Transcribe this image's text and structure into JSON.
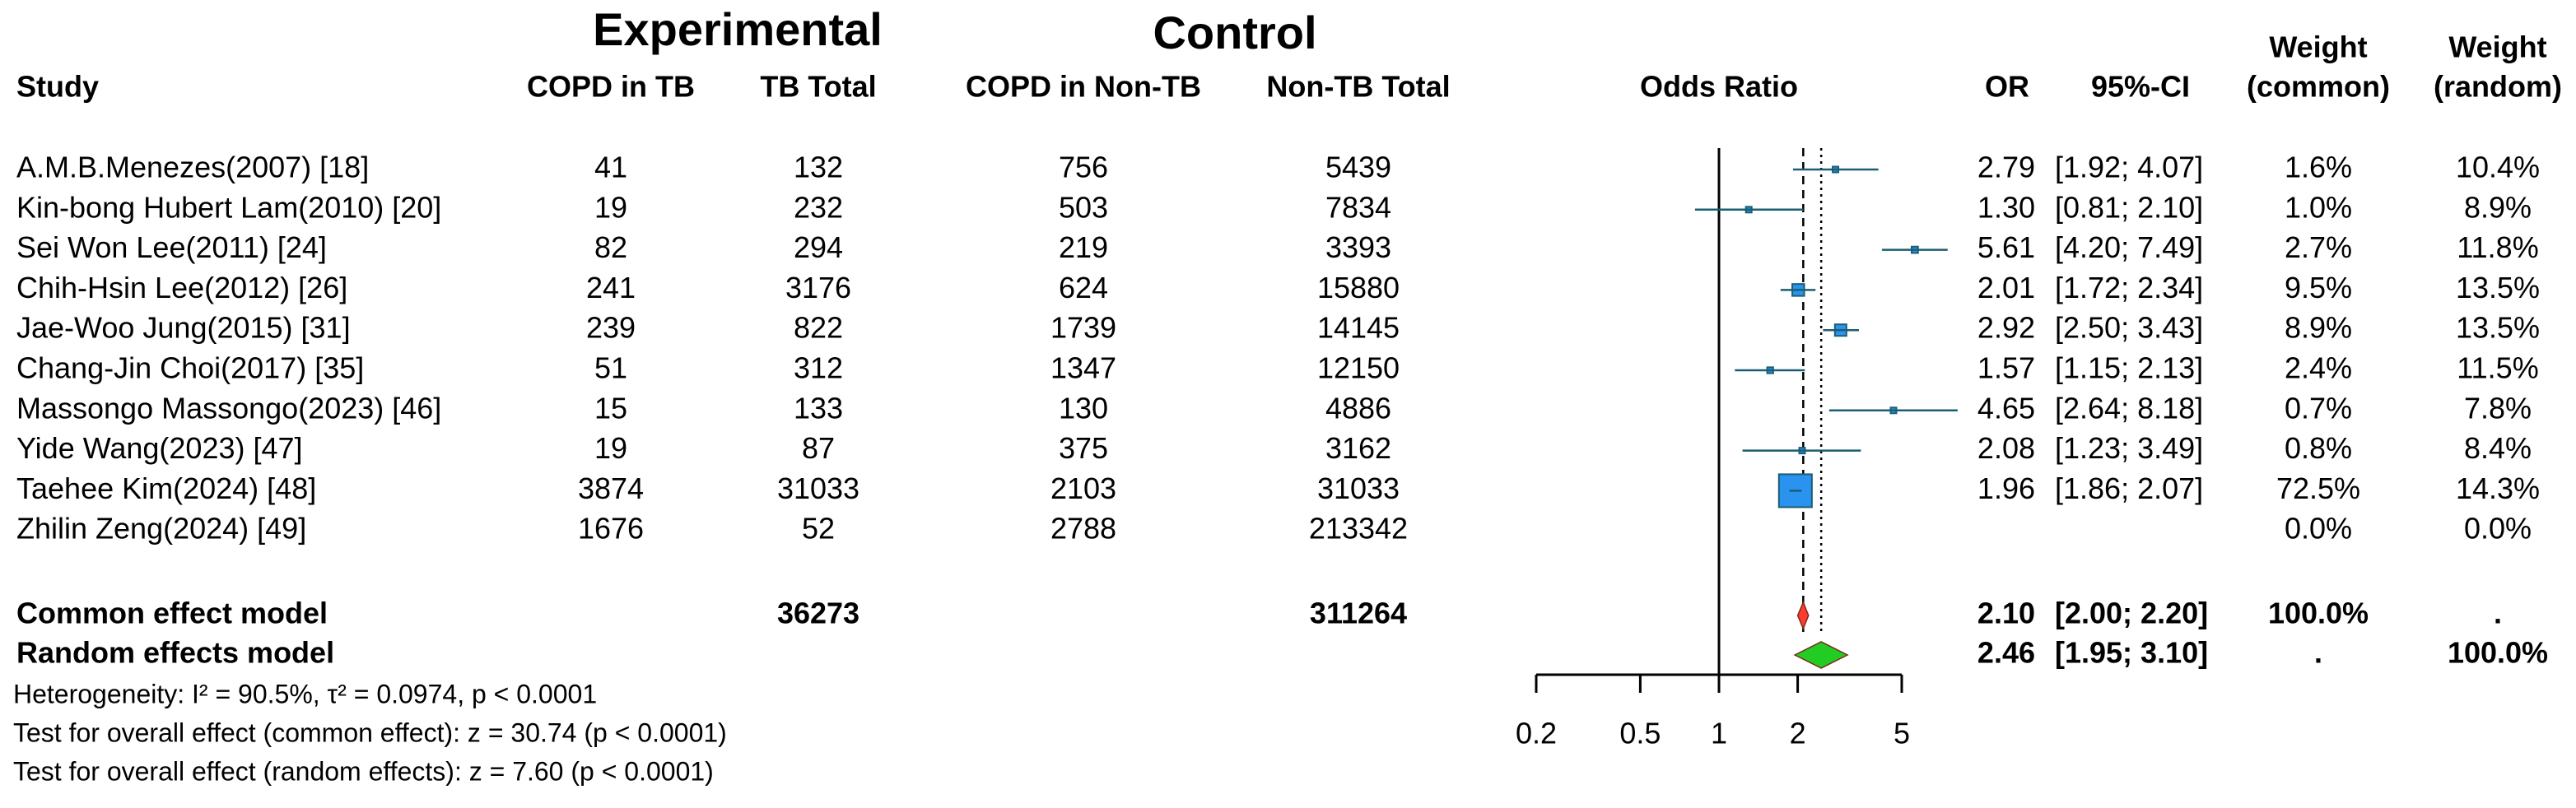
{
  "chart_data": {
    "type": "forest",
    "group_headers": {
      "experimental": "Experimental",
      "control": "Control"
    },
    "columns": {
      "study": "Study",
      "copd_tb": "COPD in TB",
      "tb_total": "TB Total",
      "copd_nontb": "COPD in Non-TB",
      "nontb_total": "Non-TB Total",
      "plot": "Odds Ratio",
      "or": "OR",
      "ci": "95%-CI",
      "weight_common": [
        "Weight",
        "(common)"
      ],
      "weight_random": [
        "Weight",
        "(random)"
      ]
    },
    "studies": [
      {
        "name": "A.M.B.Menezes(2007) [18]",
        "copd_tb": 41,
        "tb_total": 132,
        "copd_nontb": 756,
        "nontb_total": 5439,
        "or": 2.79,
        "or_label": "2.79",
        "ci": [
          1.92,
          4.07
        ],
        "ci_label": "[1.92; 4.07]",
        "weight_common": 1.6,
        "weight_common_label": "1.6%",
        "weight_random": 10.4,
        "weight_random_label": "10.4%"
      },
      {
        "name": "Kin-bong Hubert Lam(2010) [20]",
        "copd_tb": 19,
        "tb_total": 232,
        "copd_nontb": 503,
        "nontb_total": 7834,
        "or": 1.3,
        "or_label": "1.30",
        "ci": [
          0.81,
          2.1
        ],
        "ci_label": "[0.81; 2.10]",
        "weight_common": 1.0,
        "weight_common_label": "1.0%",
        "weight_random": 8.9,
        "weight_random_label": "8.9%"
      },
      {
        "name": "Sei Won Lee(2011) [24]",
        "copd_tb": 82,
        "tb_total": 294,
        "copd_nontb": 219,
        "nontb_total": 3393,
        "or": 5.61,
        "or_label": "5.61",
        "ci": [
          4.2,
          7.49
        ],
        "ci_label": "[4.20; 7.49]",
        "weight_common": 2.7,
        "weight_common_label": "2.7%",
        "weight_random": 11.8,
        "weight_random_label": "11.8%"
      },
      {
        "name": "Chih-Hsin Lee(2012) [26]",
        "copd_tb": 241,
        "tb_total": 3176,
        "copd_nontb": 624,
        "nontb_total": 15880,
        "or": 2.01,
        "or_label": "2.01",
        "ci": [
          1.72,
          2.34
        ],
        "ci_label": "[1.72; 2.34]",
        "weight_common": 9.5,
        "weight_common_label": "9.5%",
        "weight_random": 13.5,
        "weight_random_label": "13.5%"
      },
      {
        "name": "Jae-Woo Jung(2015) [31]",
        "copd_tb": 239,
        "tb_total": 822,
        "copd_nontb": 1739,
        "nontb_total": 14145,
        "or": 2.92,
        "or_label": "2.92",
        "ci": [
          2.5,
          3.43
        ],
        "ci_label": "[2.50; 3.43]",
        "weight_common": 8.9,
        "weight_common_label": "8.9%",
        "weight_random": 13.5,
        "weight_random_label": "13.5%"
      },
      {
        "name": "Chang-Jin Choi(2017) [35]",
        "copd_tb": 51,
        "tb_total": 312,
        "copd_nontb": 1347,
        "nontb_total": 12150,
        "or": 1.57,
        "or_label": "1.57",
        "ci": [
          1.15,
          2.13
        ],
        "ci_label": "[1.15; 2.13]",
        "weight_common": 2.4,
        "weight_common_label": "2.4%",
        "weight_random": 11.5,
        "weight_random_label": "11.5%"
      },
      {
        "name": "Massongo Massongo(2023) [46]",
        "copd_tb": 15,
        "tb_total": 133,
        "copd_nontb": 130,
        "nontb_total": 4886,
        "or": 4.65,
        "or_label": "4.65",
        "ci": [
          2.64,
          8.18
        ],
        "ci_label": "[2.64; 8.18]",
        "weight_common": 0.7,
        "weight_common_label": "0.7%",
        "weight_random": 7.8,
        "weight_random_label": "7.8%"
      },
      {
        "name": "Yide Wang(2023) [47]",
        "copd_tb": 19,
        "tb_total": 87,
        "copd_nontb": 375,
        "nontb_total": 3162,
        "or": 2.08,
        "or_label": "2.08",
        "ci": [
          1.23,
          3.49
        ],
        "ci_label": "[1.23; 3.49]",
        "weight_common": 0.8,
        "weight_common_label": "0.8%",
        "weight_random": 8.4,
        "weight_random_label": "8.4%"
      },
      {
        "name": "Taehee Kim(2024) [48]",
        "copd_tb": 3874,
        "tb_total": 31033,
        "copd_nontb": 2103,
        "nontb_total": 31033,
        "or": 1.96,
        "or_label": "1.96",
        "ci": [
          1.86,
          2.07
        ],
        "ci_label": "[1.86; 2.07]",
        "weight_common": 72.5,
        "weight_common_label": "72.5%",
        "weight_random": 14.3,
        "weight_random_label": "14.3%"
      },
      {
        "name": "Zhilin Zeng(2024) [49]",
        "copd_tb": 1676,
        "tb_total": 52,
        "copd_nontb": 2788,
        "nontb_total": 213342,
        "or": null,
        "or_label": null,
        "ci": null,
        "ci_label": null,
        "weight_common": 0.0,
        "weight_common_label": "0.0%",
        "weight_random": 0.0,
        "weight_random_label": "0.0%"
      }
    ],
    "summary": [
      {
        "name": "Common effect model",
        "tb_total": 36273,
        "nontb_total": 311264,
        "or": 2.1,
        "or_label": "2.10",
        "ci": [
          2.0,
          2.2
        ],
        "ci_label": "[2.00; 2.20]",
        "weight_common_label": "100.0%",
        "weight_random_label": ".",
        "color": "#ff3b30",
        "line_style": "dashed"
      },
      {
        "name": "Random effects model",
        "or": 2.46,
        "or_label": "2.46",
        "ci": [
          1.95,
          3.1
        ],
        "ci_label": "[1.95; 3.10]",
        "weight_common_label": ".",
        "weight_random_label": "100.0%",
        "color": "#22cc22",
        "line_style": "dotted"
      }
    ],
    "footnotes": [
      "Heterogeneity: I² = 90.5%, τ² = 0.0974, p < 0.0001",
      "Test for overall effect (common effect): z = 30.74 (p < 0.0001)",
      "Test for overall effect (random effects): z = 7.60 (p < 0.0001)"
    ],
    "xlim": [
      0.2,
      5
    ],
    "xticks": [
      0.2,
      0.5,
      1,
      2,
      5
    ],
    "log_scale": true,
    "reference_value": 1,
    "square_color": "#2a93f0",
    "line_color": "#1b5e73"
  }
}
